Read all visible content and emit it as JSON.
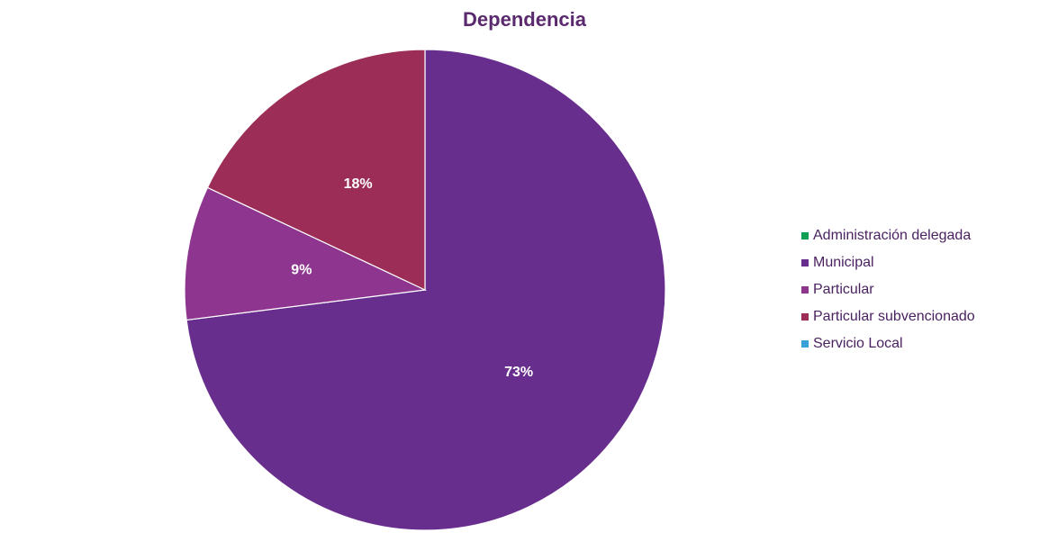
{
  "chart_data": {
    "type": "pie",
    "title": "Dependencia",
    "categories": [
      "Administración delegada",
      "Municipal",
      "Particular",
      "Particular subvencionado",
      "Servicio Local"
    ],
    "values": [
      0,
      73,
      9,
      18,
      0
    ],
    "labels": [
      "",
      "73%",
      "9%",
      "18%",
      ""
    ],
    "colors": [
      "#0e9e55",
      "#672e8e",
      "#8e3590",
      "#9b2d56",
      "#3aa0d8"
    ],
    "legend_position": "right"
  }
}
